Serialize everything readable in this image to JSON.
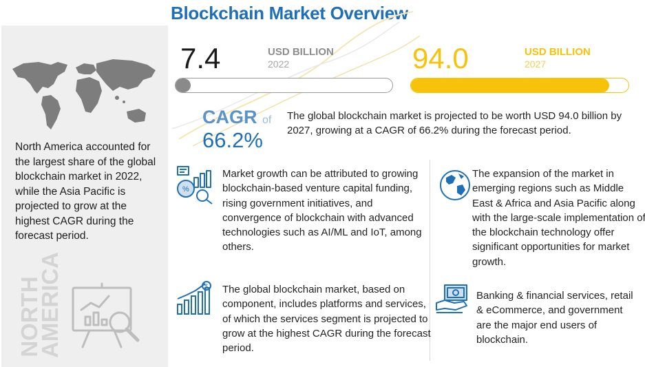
{
  "title": "Blockchain Market Overview",
  "side": {
    "text": "North America accounted for the largest share of the global blockchain market in 2022, while the Asia Pacific is projected to grow at the highest CAGR during the forecast period.",
    "region_label_line1": "NORTH",
    "region_label_line2": "AMERICA"
  },
  "market": {
    "value_2022": "7.4",
    "unit_2022": "USD BILLION",
    "year_2022": "2022",
    "value_2027": "94.0",
    "unit_2027": "USD BILLION",
    "year_2027": "2027",
    "bar_2022_fill_fraction": 0.07,
    "bar_2027_fill_fraction": 0.91
  },
  "cagr": {
    "label": "CAGR",
    "of": "of",
    "value": "66.2%",
    "text": "The global blockchain market is projected to be worth USD 94.0 billion by 2027, growing at a CAGR of 66.2% during the forecast period."
  },
  "points": {
    "growth": "Market growth can be attributed to growing blockchain-based venture capital funding, rising government initiatives, and convergence of blockchain with advanced technologies such as AI/ML and IoT, among others.",
    "expansion": "The expansion of the market in emerging regions such as Middle East & Africa and Asia Pacific along with the large-scale implementation of the blockchain technology offer significant opportunities for market growth.",
    "component": "The global blockchain market, based on component, includes platforms and services, of which the services segment is projected to grow at the highest CAGR during the forecast period.",
    "end_users": "Banking & financial services, retail & eCommerce, and government are the major end users of blockchain."
  },
  "colors": {
    "title_blue": "#1f6fb7",
    "accent_yellow": "#f7c20a",
    "grey_fill": "#888888",
    "side_bg": "#efeff0"
  }
}
